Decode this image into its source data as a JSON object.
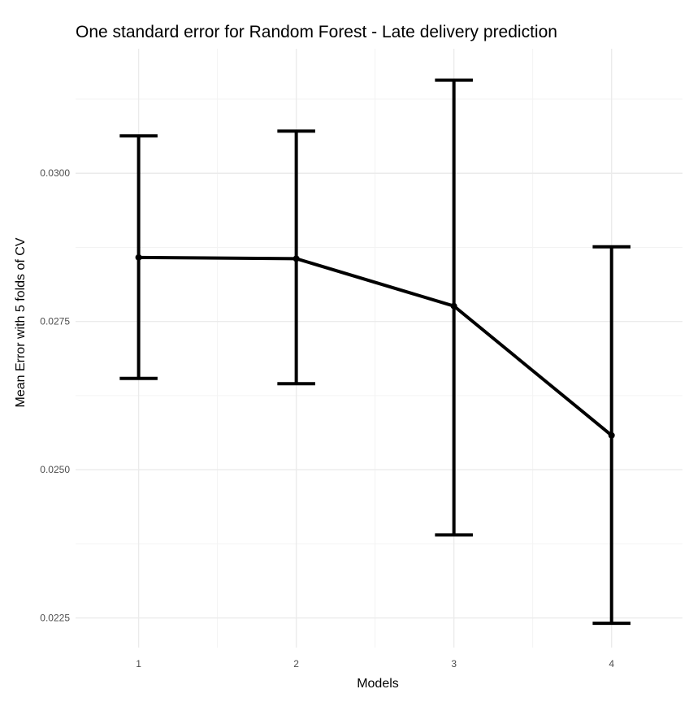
{
  "chart_data": {
    "type": "line",
    "title": "One standard error for Random Forest - Late delivery prediction",
    "xlabel": "Models",
    "ylabel": "Mean Error with 5 folds of CV",
    "x": [
      1,
      2,
      3,
      4
    ],
    "x_tick_labels": [
      "1",
      "2",
      "3",
      "4"
    ],
    "xlim": [
      0.6,
      4.45
    ],
    "y_tick_labels": [
      "0.0225",
      "0.0250",
      "0.0275",
      "0.0300"
    ],
    "y_ticks": [
      0.0225,
      0.025,
      0.0275,
      0.03
    ],
    "ylim": [
      0.022,
      0.0321
    ],
    "grid": true,
    "series": [
      {
        "values": [
          0.02858,
          0.02856,
          0.02776,
          0.02558
        ],
        "error_lower": [
          0.02654,
          0.02645,
          0.0239,
          0.02241
        ],
        "error_upper": [
          0.03063,
          0.03071,
          0.03157,
          0.02876
        ]
      }
    ]
  }
}
